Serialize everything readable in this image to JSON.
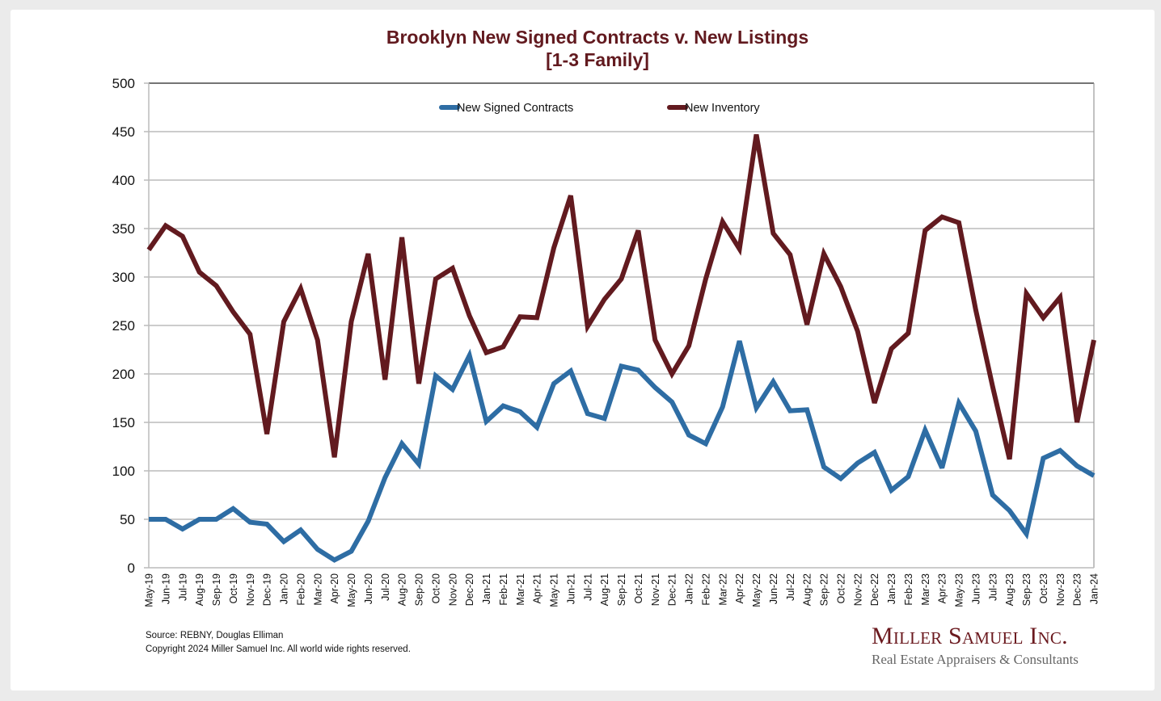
{
  "chart_data": {
    "type": "line",
    "title": "Brooklyn New Signed Contracts v. New Listings",
    "subtitle": "[1-3 Family]",
    "xlabel": "",
    "ylabel": "",
    "ylim": [
      0,
      500
    ],
    "yticks": [
      0,
      50,
      100,
      150,
      200,
      250,
      300,
      350,
      400,
      450,
      500
    ],
    "grid": true,
    "legend_position": "top-center",
    "categories": [
      "May-19",
      "Jun-19",
      "Jul-19",
      "Aug-19",
      "Sep-19",
      "Oct-19",
      "Nov-19",
      "Dec-19",
      "Jan-20",
      "Feb-20",
      "Mar-20",
      "Apr-20",
      "May-20",
      "Jun-20",
      "Jul-20",
      "Aug-20",
      "Sep-20",
      "Oct-20",
      "Nov-20",
      "Dec-20",
      "Jan-21",
      "Feb-21",
      "Mar-21",
      "Apr-21",
      "May-21",
      "Jun-21",
      "Jul-21",
      "Aug-21",
      "Sep-21",
      "Oct-21",
      "Nov-21",
      "Dec-21",
      "Jan-22",
      "Feb-22",
      "Mar-22",
      "Apr-22",
      "May-22",
      "Jun-22",
      "Jul-22",
      "Aug-22",
      "Sep-22",
      "Oct-22",
      "Nov-22",
      "Dec-22",
      "Jan-23",
      "Feb-23",
      "Mar-23",
      "Apr-23",
      "May-23",
      "Jun-23",
      "Jul-23",
      "Aug-23",
      "Sep-23",
      "Oct-23",
      "Nov-23",
      "Dec-23",
      "Jan-24"
    ],
    "series": [
      {
        "name": "New Signed Contracts",
        "color": "#2e6da4",
        "values": [
          50,
          50,
          40,
          50,
          50,
          61,
          47,
          45,
          27,
          39,
          19,
          8,
          17,
          48,
          93,
          128,
          107,
          198,
          184,
          219,
          151,
          167,
          161,
          145,
          190,
          203,
          159,
          154,
          208,
          204,
          186,
          171,
          137,
          128,
          166,
          234,
          165,
          192,
          162,
          163,
          104,
          92,
          108,
          119,
          80,
          94,
          142,
          103,
          170,
          141,
          75,
          59,
          35,
          113,
          121,
          105,
          95
        ]
      },
      {
        "name": "New Inventory",
        "color": "#621a1f",
        "values": [
          328,
          353,
          342,
          305,
          291,
          264,
          241,
          138,
          254,
          288,
          235,
          114,
          254,
          324,
          194,
          341,
          190,
          298,
          309,
          260,
          222,
          228,
          259,
          258,
          330,
          384,
          249,
          277,
          298,
          348,
          235,
          200,
          229,
          298,
          357,
          329,
          447,
          345,
          323,
          251,
          324,
          290,
          244,
          170,
          226,
          242,
          348,
          362,
          356,
          266,
          187,
          112,
          283,
          258,
          279,
          150,
          235
        ]
      }
    ]
  },
  "footer": {
    "source": "Source: REBNY, Douglas Elliman",
    "copyright": "Copyright 2024 Miller Samuel Inc.  All world wide rights reserved."
  },
  "logo": {
    "name": "Miller Samuel Inc.",
    "tagline": "Real Estate Appraisers & Consultants"
  }
}
